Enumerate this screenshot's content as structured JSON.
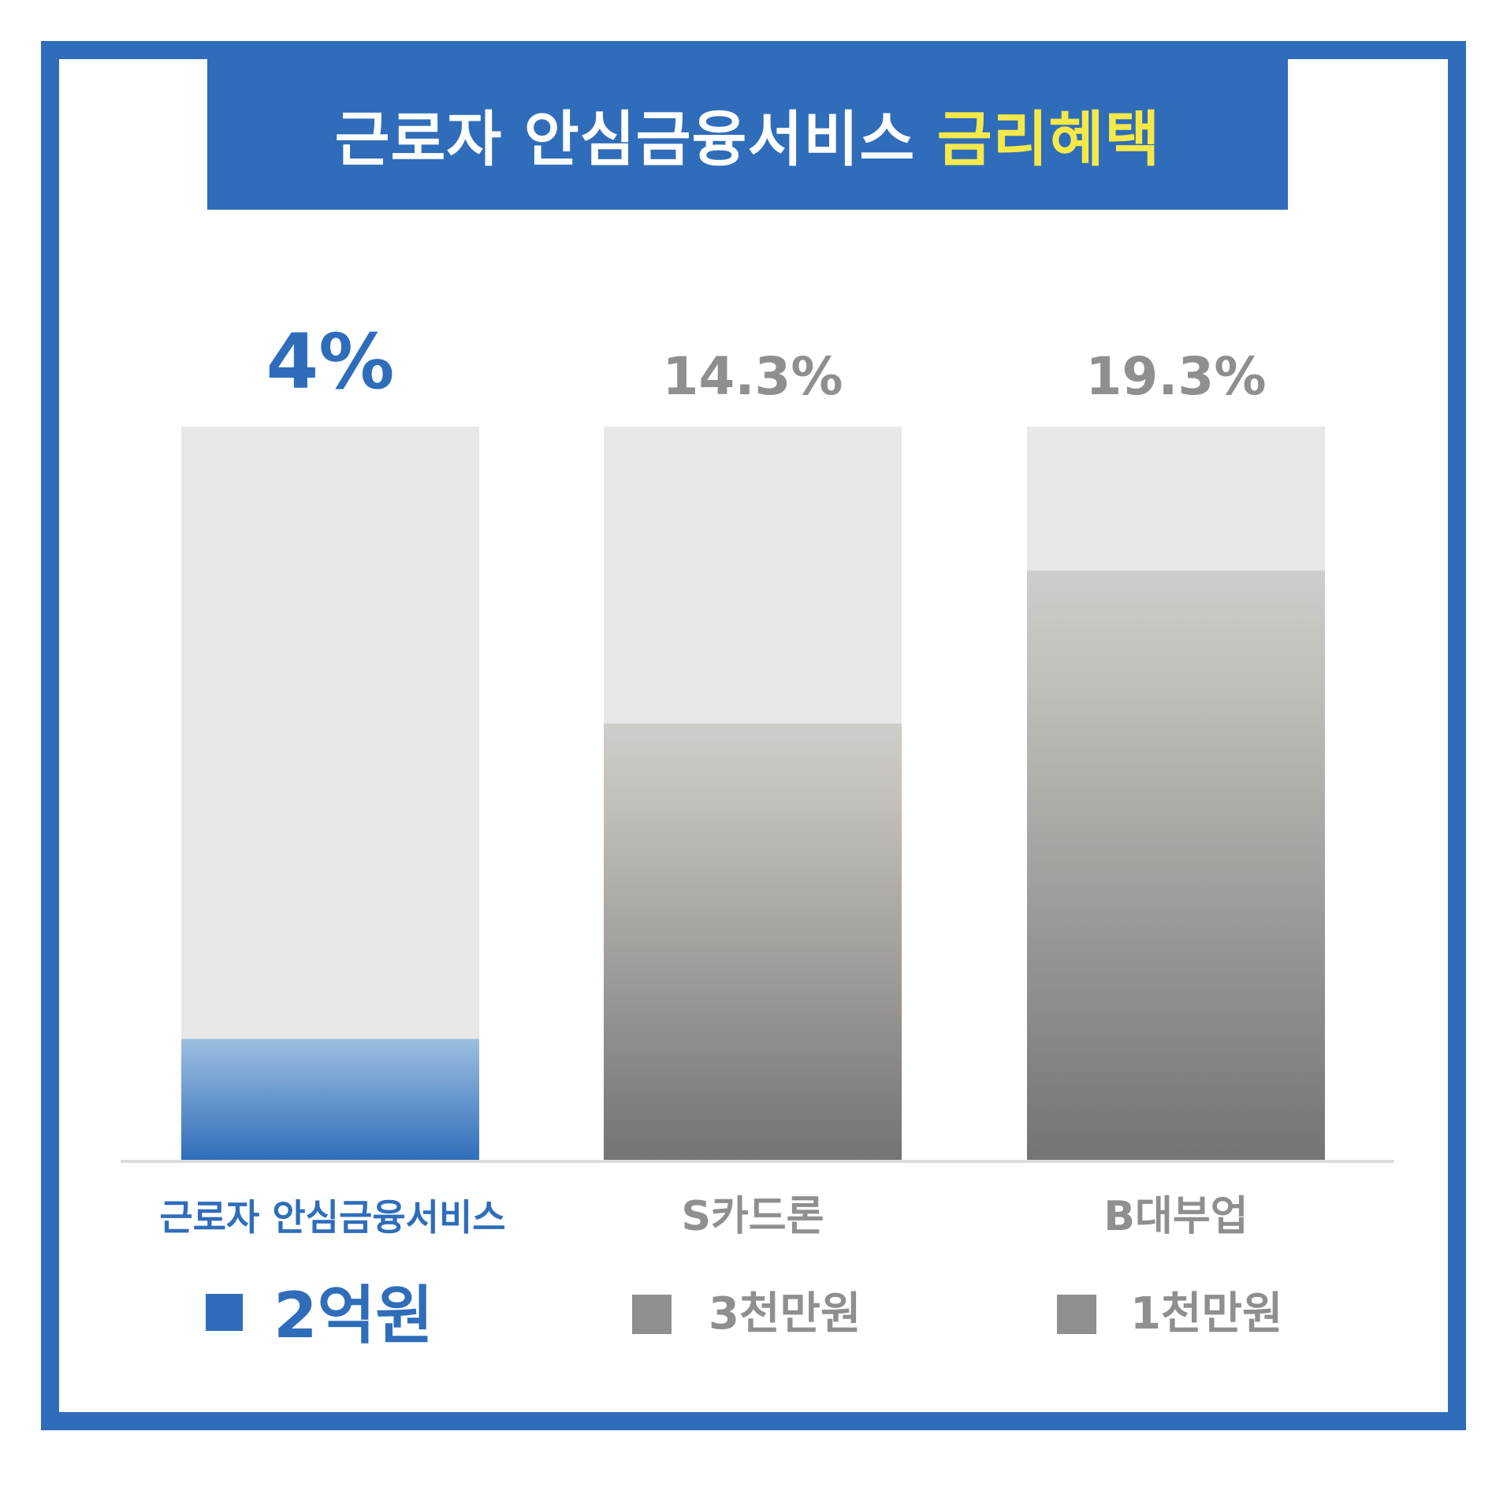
{
  "header": {
    "title_main": "근로자 안심금융서비스",
    "title_highlight": "금리혜택"
  },
  "colors": {
    "brand_blue": "#2f6dba",
    "highlight_yellow": "#f5e94a",
    "neutral_gray": "#8f8f8f",
    "track_gray": "#e8e8e8"
  },
  "chart_data": {
    "type": "bar",
    "categories": [
      "근로자 안심금융서비스",
      "S카드론",
      "B대부업"
    ],
    "values": [
      4,
      14.3,
      19.3
    ],
    "value_labels": [
      "4%",
      "14.3%",
      "19.3%"
    ],
    "legend": [
      {
        "marker": "square",
        "label": "2억원"
      },
      {
        "marker": "square",
        "label": "3천만원"
      },
      {
        "marker": "square",
        "label": "1천만원"
      }
    ],
    "title": "",
    "xlabel": "",
    "ylabel": "",
    "ylim": [
      0,
      24
    ],
    "grid": false,
    "legend_placement": "bottom"
  }
}
